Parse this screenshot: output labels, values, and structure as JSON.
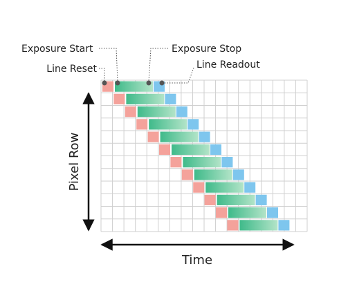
{
  "callouts": {
    "exposure_start": "Exposure Start",
    "line_reset": "Line Reset",
    "exposure_stop": "Exposure Stop",
    "line_readout": "Line Readout"
  },
  "axes": {
    "y_label": "Pixel Row",
    "x_label": "Time"
  }
}
